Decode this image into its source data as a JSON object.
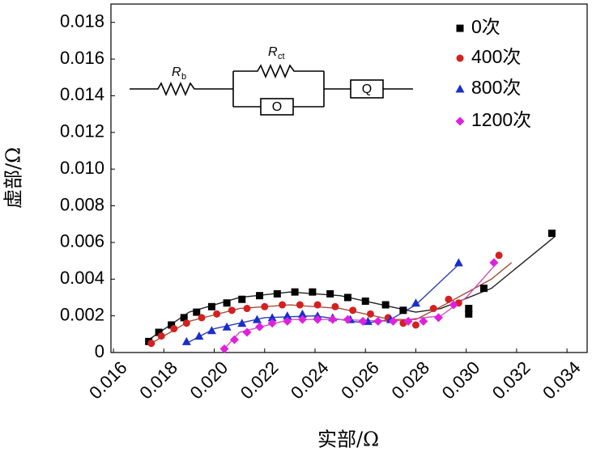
{
  "chart_data": {
    "type": "scatter",
    "x_label": "实部/Ω",
    "y_label": "虚部/Ω",
    "xlim": [
      0.0159,
      0.0348
    ],
    "ylim": [
      0,
      0.019
    ],
    "xticks": [
      0.016,
      0.018,
      {
        "value": 0.02,
        "label": "0.020"
      },
      0.022,
      0.024,
      0.026,
      0.028,
      {
        "value": 0.03,
        "label": "0.030"
      },
      0.032,
      0.034
    ],
    "yticks": [
      0,
      0.002,
      0.004,
      0.006,
      0.008,
      {
        "value": 0.01,
        "label": "0.010"
      },
      0.012,
      0.014,
      0.016,
      0.018
    ],
    "legend_position": "upper right",
    "circuit": {
      "rb": {
        "symbol": "R",
        "subscript": "b"
      },
      "rct": {
        "symbol": "R",
        "subscript": "ct"
      },
      "parallel_element": "O",
      "series_element": "Q"
    },
    "series": [
      {
        "name": "0次",
        "marker": "square",
        "color": "#000000",
        "fit_color": "#222222",
        "x": [
          0.0174,
          0.0178,
          0.0183,
          0.0188,
          0.0193,
          0.0199,
          0.0205,
          0.0211,
          0.0218,
          0.0225,
          0.0232,
          0.0239,
          0.0246,
          0.0253,
          0.026,
          0.0268,
          0.0275,
          0.0301,
          0.0301,
          0.0307,
          0.0334
        ],
        "values": [
          0.0006,
          0.0011,
          0.0015,
          0.0019,
          0.0022,
          0.0025,
          0.0027,
          0.0029,
          0.0031,
          0.0032,
          0.0033,
          0.0033,
          0.0032,
          0.003,
          0.0028,
          0.0026,
          0.0023,
          0.0024,
          0.0021,
          0.0035,
          0.0065
        ],
        "fit": {
          "x": [
            0.0174,
            0.019,
            0.021,
            0.023,
            0.025,
            0.027,
            0.028,
            0.029,
            0.031,
            0.0335
          ],
          "y": [
            0.0007,
            0.0022,
            0.003,
            0.0033,
            0.0031,
            0.0025,
            0.0022,
            0.0024,
            0.0035,
            0.0063
          ]
        }
      },
      {
        "name": "400次",
        "marker": "circle",
        "color": "#d42020",
        "fit_color": "#a0503a",
        "x": [
          0.0175,
          0.0179,
          0.0184,
          0.0189,
          0.0195,
          0.0201,
          0.0207,
          0.0213,
          0.022,
          0.0227,
          0.0234,
          0.0241,
          0.0248,
          0.0255,
          0.0262,
          0.0269,
          0.0275,
          0.028,
          0.0287,
          0.0293,
          0.0297,
          0.0313
        ],
        "values": [
          0.0005,
          0.0009,
          0.0013,
          0.0016,
          0.0019,
          0.0021,
          0.0023,
          0.0024,
          0.0025,
          0.0026,
          0.0026,
          0.0026,
          0.0025,
          0.0023,
          0.0021,
          0.0019,
          0.0016,
          0.0015,
          0.0024,
          0.0029,
          0.0027,
          0.0053
        ],
        "fit": {
          "x": [
            0.0175,
            0.019,
            0.021,
            0.023,
            0.025,
            0.027,
            0.028,
            0.029,
            0.031,
            0.0318
          ],
          "y": [
            0.0005,
            0.0017,
            0.0024,
            0.0026,
            0.0024,
            0.0018,
            0.0018,
            0.0025,
            0.004,
            0.0049
          ]
        }
      },
      {
        "name": "800次",
        "marker": "triangle",
        "color": "#1a2fc8",
        "fit_color": "#3040b0",
        "x": [
          0.0189,
          0.0194,
          0.0199,
          0.0205,
          0.0211,
          0.0217,
          0.0223,
          0.0229,
          0.0235,
          0.0241,
          0.0247,
          0.0254,
          0.0261,
          0.027,
          0.028,
          0.0297
        ],
        "values": [
          0.0006,
          0.0009,
          0.0012,
          0.0014,
          0.0016,
          0.0018,
          0.0019,
          0.002,
          0.0021,
          0.002,
          0.0019,
          0.0018,
          0.0017,
          0.0018,
          0.0027,
          0.0049
        ],
        "fit": {
          "x": [
            0.0189,
            0.02,
            0.022,
            0.024,
            0.026,
            0.027,
            0.028,
            0.0297
          ],
          "y": [
            0.0005,
            0.0013,
            0.0019,
            0.002,
            0.0016,
            0.0018,
            0.0026,
            0.0048
          ]
        }
      },
      {
        "name": "1200次",
        "marker": "diamond",
        "color": "#e020e0",
        "fit_color": "#d050c0",
        "x": [
          0.0204,
          0.0208,
          0.0213,
          0.0218,
          0.0223,
          0.0229,
          0.0235,
          0.0241,
          0.0247,
          0.0253,
          0.0259,
          0.0265,
          0.0271,
          0.0277,
          0.0283,
          0.0289,
          0.0295,
          0.0311
        ],
        "values": [
          0.0002,
          0.0007,
          0.0011,
          0.0014,
          0.0016,
          0.0017,
          0.0018,
          0.0018,
          0.0018,
          0.0018,
          0.0017,
          0.0017,
          0.0017,
          0.0017,
          0.0017,
          0.0019,
          0.0026,
          0.0049
        ],
        "fit": {
          "x": [
            0.0204,
            0.021,
            0.023,
            0.025,
            0.027,
            0.029,
            0.03,
            0.0311
          ],
          "y": [
            0.0002,
            0.0011,
            0.0018,
            0.0018,
            0.0017,
            0.002,
            0.003,
            0.0047
          ]
        }
      }
    ]
  }
}
